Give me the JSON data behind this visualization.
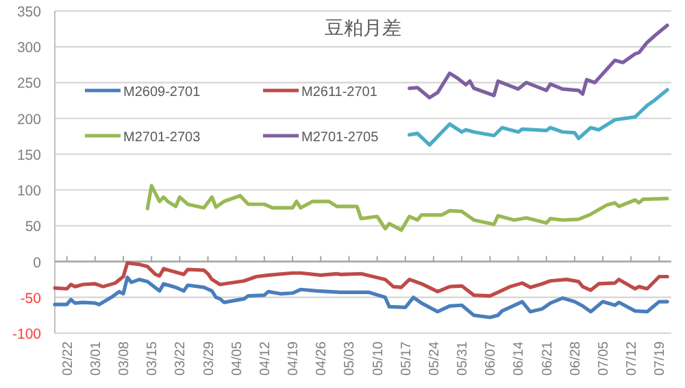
{
  "chart_data": {
    "type": "line",
    "title": "豆粕月差",
    "legend": "top left",
    "grid": "y",
    "line_style": "solid",
    "marker": "none",
    "xlim": [
      "--02-19",
      "--07-22"
    ],
    "ylim": [
      -100,
      350
    ],
    "yticks": [
      -100,
      -50,
      0,
      50,
      100,
      150,
      200,
      250,
      300,
      350
    ],
    "xticks": [
      {
        "value": "--02-22",
        "label": "02/22"
      },
      {
        "value": "--03-01",
        "label": "03/01"
      },
      {
        "value": "--03-08",
        "label": "03/08"
      },
      {
        "value": "--03-15",
        "label": "03/15"
      },
      {
        "value": "--03-22",
        "label": "03/22"
      },
      {
        "value": "--03-29",
        "label": "03/29"
      },
      {
        "value": "--04-05",
        "label": "04/05"
      },
      {
        "value": "--04-12",
        "label": "04/12"
      },
      {
        "value": "--04-19",
        "label": "04/19"
      },
      {
        "value": "--04-26",
        "label": "04/26"
      },
      {
        "value": "--05-03",
        "label": "05/03"
      },
      {
        "value": "--05-10",
        "label": "05/10"
      },
      {
        "value": "--05-17",
        "label": "05/17"
      },
      {
        "value": "--05-24",
        "label": "05/24"
      },
      {
        "value": "--05-31",
        "label": "05/31"
      },
      {
        "value": "--06-07",
        "label": "06/07"
      },
      {
        "value": "--06-14",
        "label": "06/14"
      },
      {
        "value": "--06-21",
        "label": "06/21"
      },
      {
        "value": "--06-28",
        "label": "06/28"
      },
      {
        "value": "--07-05",
        "label": "07/05"
      },
      {
        "value": "--07-12",
        "label": "07/12"
      },
      {
        "value": "--07-19",
        "label": "07/19"
      }
    ],
    "series": [
      {
        "name": "M2609-2701",
        "color": "#4a7ebb",
        "x": [
          "--02-19",
          "--02-22",
          "--02-23",
          "--02-24",
          "--02-26",
          "--03-01",
          "--03-02",
          "--03-05",
          "--03-07",
          "--03-08",
          "--03-09",
          "--03-10",
          "--03-12",
          "--03-14",
          "--03-17",
          "--03-18",
          "--03-21",
          "--03-23",
          "--03-24",
          "--03-28",
          "--03-30",
          "--03-31",
          "--04-01",
          "--04-02",
          "--04-07",
          "--04-08",
          "--04-12",
          "--04-13",
          "--04-16",
          "--04-19",
          "--04-21",
          "--04-25",
          "--04-28",
          "--05-01",
          "--05-08",
          "--05-12",
          "--05-13",
          "--05-17",
          "--05-19",
          "--05-21",
          "--05-25",
          "--05-28",
          "--05-31",
          "--06-03",
          "--06-07",
          "--06-09",
          "--06-10",
          "--06-15",
          "--06-17",
          "--06-20",
          "--06-22",
          "--06-25",
          "--06-28",
          "--06-30",
          "--07-02",
          "--07-05",
          "--07-08",
          "--07-09",
          "--07-13",
          "--07-16",
          "--07-19",
          "--07-21"
        ],
        "values": [
          -60,
          -60,
          -53,
          -58,
          -57,
          -58,
          -60,
          -50,
          -42,
          -45,
          -22,
          -29,
          -25,
          -28,
          -41,
          -31,
          -36,
          -41,
          -33,
          -36,
          -41,
          -50,
          -52,
          -57,
          -52,
          -48,
          -47,
          -42,
          -45,
          -44,
          -39,
          -41,
          -42,
          -43,
          -43,
          -50,
          -63,
          -64,
          -50,
          -58,
          -70,
          -62,
          -61,
          -75,
          -78,
          -75,
          -69,
          -56,
          -70,
          -66,
          -58,
          -51,
          -56,
          -62,
          -70,
          -56,
          -61,
          -57,
          -69,
          -70,
          -56,
          -56
        ]
      },
      {
        "name": "M2611-2701",
        "color": "#be4b48",
        "x": [
          "--02-19",
          "--02-22",
          "--02-23",
          "--02-24",
          "--02-26",
          "--03-01",
          "--03-03",
          "--03-06",
          "--03-08",
          "--03-09",
          "--03-12",
          "--03-14",
          "--03-16",
          "--03-17",
          "--03-18",
          "--03-23",
          "--03-24",
          "--03-28",
          "--03-29",
          "--03-30",
          "--04-01",
          "--04-07",
          "--04-10",
          "--04-13",
          "--04-19",
          "--04-21",
          "--04-26",
          "--04-30",
          "--05-01",
          "--05-06",
          "--05-12",
          "--05-14",
          "--05-16",
          "--05-18",
          "--05-21",
          "--05-25",
          "--05-28",
          "--05-31",
          "--06-03",
          "--06-07",
          "--06-09",
          "--06-12",
          "--06-15",
          "--06-17",
          "--06-20",
          "--06-22",
          "--06-26",
          "--06-29",
          "--06-30",
          "--07-02",
          "--07-04",
          "--07-08",
          "--07-09",
          "--07-13",
          "--07-14",
          "--07-16",
          "--07-19",
          "--07-21"
        ],
        "values": [
          -37,
          -38,
          -32,
          -35,
          -32,
          -31,
          -35,
          -30,
          -21,
          -2,
          -4,
          -7,
          -18,
          -20,
          -10,
          -18,
          -11,
          -12,
          -17,
          -25,
          -32,
          -27,
          -21,
          -19,
          -16,
          -16,
          -19,
          -17,
          -18,
          -17,
          -25,
          -35,
          -36,
          -25,
          -31,
          -42,
          -35,
          -34,
          -47,
          -48,
          -43,
          -35,
          -30,
          -36,
          -31,
          -27,
          -25,
          -28,
          -35,
          -40,
          -31,
          -30,
          -25,
          -38,
          -35,
          -38,
          -21,
          -21
        ]
      },
      {
        "name": "M2701-2703",
        "color": "#98b954",
        "x": [
          "--03-14",
          "--03-15",
          "--03-17",
          "--03-18",
          "--03-19",
          "--03-21",
          "--03-22",
          "--03-24",
          "--03-28",
          "--03-30",
          "--03-31",
          "--04-02",
          "--04-06",
          "--04-08",
          "--04-12",
          "--04-14",
          "--04-19",
          "--04-20",
          "--04-21",
          "--04-24",
          "--04-28",
          "--04-30",
          "--05-01",
          "--05-05",
          "--05-06",
          "--05-10",
          "--05-12",
          "--05-13",
          "--05-16",
          "--05-18",
          "--05-20",
          "--05-21",
          "--05-26",
          "--05-28",
          "--05-31",
          "--06-03",
          "--06-08",
          "--06-09",
          "--06-13",
          "--06-16",
          "--06-21",
          "--06-22",
          "--06-25",
          "--06-29",
          "--07-02",
          "--07-06",
          "--07-08",
          "--07-09",
          "--07-13",
          "--07-14",
          "--07-15",
          "--07-21"
        ],
        "values": [
          74,
          106,
          84,
          90,
          84,
          77,
          90,
          80,
          75,
          90,
          76,
          84,
          92,
          80,
          80,
          75,
          75,
          84,
          75,
          84,
          84,
          77,
          77,
          77,
          60,
          63,
          46,
          53,
          44,
          63,
          58,
          65,
          65,
          71,
          70,
          58,
          52,
          64,
          58,
          61,
          54,
          60,
          58,
          59,
          66,
          79,
          82,
          77,
          86,
          82,
          87,
          88
        ]
      },
      {
        "name": "M2701-2705",
        "color": "#7d60a0",
        "x": [
          "--05-18",
          "--05-20",
          "--05-23",
          "--05-25",
          "--05-28",
          "--05-30",
          "--06-01",
          "--06-02",
          "--06-03",
          "--06-08",
          "--06-09",
          "--06-14",
          "--06-16",
          "--06-21",
          "--06-22",
          "--06-25",
          "--06-29",
          "--06-30",
          "--07-01",
          "--07-03",
          "--07-08",
          "--07-10",
          "--07-13",
          "--07-14",
          "--07-16",
          "--07-18",
          "--07-21"
        ],
        "values": [
          242,
          243,
          229,
          236,
          263,
          256,
          247,
          252,
          242,
          232,
          252,
          241,
          250,
          239,
          248,
          241,
          239,
          234,
          254,
          250,
          281,
          278,
          290,
          292,
          306,
          316,
          330
        ]
      },
      {
        "color": "#4bacc6",
        "x": [
          "--05-18",
          "--05-20",
          "--05-23",
          "--05-28",
          "--05-31",
          "--06-01",
          "--06-03",
          "--06-08",
          "--06-10",
          "--06-14",
          "--06-15",
          "--06-21",
          "--06-22",
          "--06-25",
          "--06-28",
          "--06-29",
          "--07-02",
          "--07-04",
          "--07-08",
          "--07-13",
          "--07-16",
          "--07-18",
          "--07-21"
        ],
        "values": [
          177,
          179,
          163,
          192,
          181,
          184,
          181,
          176,
          187,
          181,
          185,
          183,
          187,
          181,
          180,
          172,
          187,
          184,
          198,
          202,
          218,
          226,
          240
        ]
      }
    ]
  }
}
